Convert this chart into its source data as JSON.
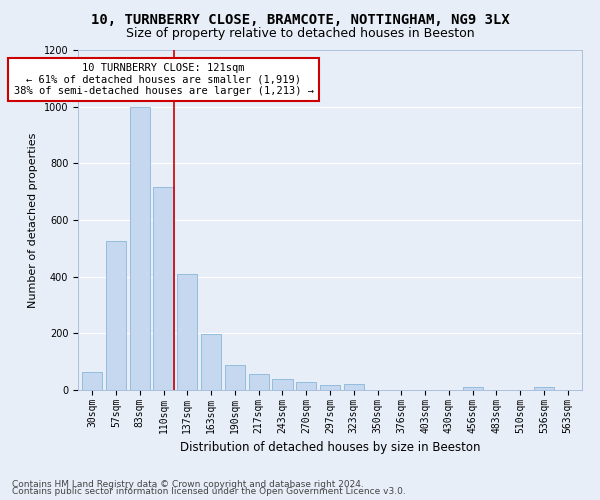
{
  "title1": "10, TURNBERRY CLOSE, BRAMCOTE, NOTTINGHAM, NG9 3LX",
  "title2": "Size of property relative to detached houses in Beeston",
  "xlabel": "Distribution of detached houses by size in Beeston",
  "ylabel": "Number of detached properties",
  "footer1": "Contains HM Land Registry data © Crown copyright and database right 2024.",
  "footer2": "Contains public sector information licensed under the Open Government Licence v3.0.",
  "categories": [
    "30sqm",
    "57sqm",
    "83sqm",
    "110sqm",
    "137sqm",
    "163sqm",
    "190sqm",
    "217sqm",
    "243sqm",
    "270sqm",
    "297sqm",
    "323sqm",
    "350sqm",
    "376sqm",
    "403sqm",
    "430sqm",
    "456sqm",
    "483sqm",
    "510sqm",
    "536sqm",
    "563sqm"
  ],
  "values": [
    65,
    527,
    1000,
    715,
    408,
    197,
    90,
    58,
    38,
    30,
    17,
    20,
    0,
    0,
    0,
    0,
    10,
    0,
    0,
    10,
    0
  ],
  "bar_color": "#c5d8f0",
  "bar_edgecolor": "#7aafd4",
  "vline_index": 3,
  "annotation_text": "10 TURNBERRY CLOSE: 121sqm\n← 61% of detached houses are smaller (1,919)\n38% of semi-detached houses are larger (1,213) →",
  "annotation_box_color": "#ffffff",
  "annotation_box_edgecolor": "#cc0000",
  "vline_color": "#cc0000",
  "ylim": [
    0,
    1200
  ],
  "yticks": [
    0,
    200,
    400,
    600,
    800,
    1000,
    1200
  ],
  "background_color": "#e8eef8",
  "grid_color": "#ffffff",
  "title1_fontsize": 10,
  "title2_fontsize": 9,
  "xlabel_fontsize": 8.5,
  "ylabel_fontsize": 8,
  "tick_fontsize": 7,
  "annotation_fontsize": 7.5,
  "footer_fontsize": 6.5
}
